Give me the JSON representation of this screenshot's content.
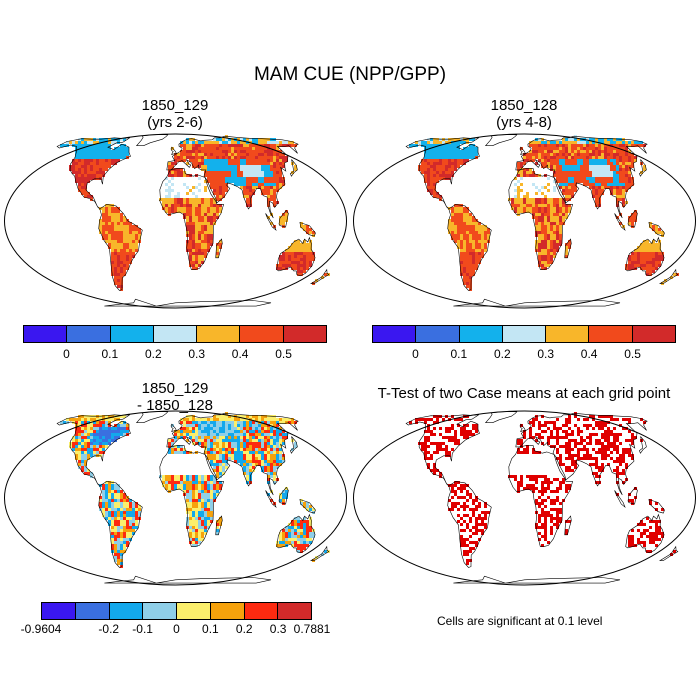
{
  "title": "MAM CUE (NPP/GPP)",
  "panels": [
    {
      "title_line1": "1850_129",
      "title_line2": "(yrs 2-6)"
    },
    {
      "title_line1": "1850_128",
      "title_line2": "(yrs 4-8)"
    },
    {
      "title_line1": "1850_129",
      "title_line2": "- 1850_128"
    },
    {
      "title_line1": "T-Test of two Case means at each grid point",
      "title_line2": ""
    }
  ],
  "colorbar_cue": {
    "colors": [
      "#3a17f0",
      "#3a6fe0",
      "#13b1ec",
      "#c3e6f4",
      "#f8b62a",
      "#f14a1c",
      "#d22a2a"
    ],
    "ticks": [
      "0",
      "0.1",
      "0.2",
      "0.3",
      "0.4",
      "0.5"
    ]
  },
  "colorbar_diff": {
    "colors": [
      "#3a17f0",
      "#3a6fe0",
      "#13a8ec",
      "#8fcfe8",
      "#fbef6c",
      "#f6a20c",
      "#fd2a10",
      "#d22a2a"
    ],
    "ticks": [
      "-0.9604",
      "-0.2",
      "-0.1",
      "0",
      "0.1",
      "0.2",
      "0.3",
      "0.7881"
    ]
  },
  "significance_note": "Cells are significant at 0.1 level",
  "significance_color": "#e00000"
}
